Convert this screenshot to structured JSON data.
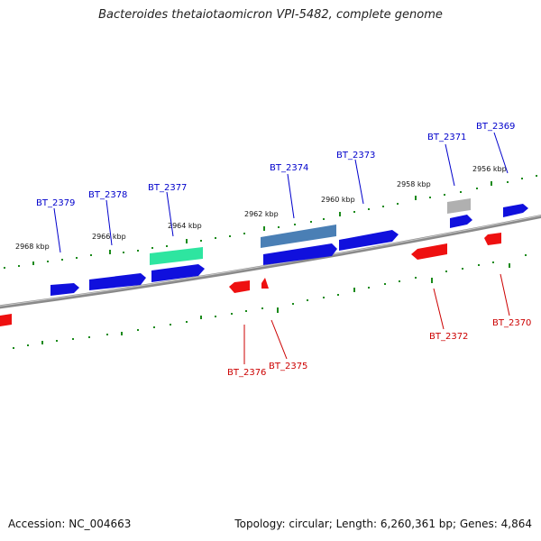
{
  "title": "Bacteroides thetaiotaomicron VPI-5482, complete genome",
  "accession": "Accession: NC_004663",
  "stats": "Topology: circular; Length: 6,260,361 bp; Genes: 4,864",
  "colors": {
    "forward_label": "#0000cc",
    "reverse_label": "#cc0000",
    "backbone": "#8a8a8a",
    "tick": "#1a8a1a"
  },
  "kbp_labels": [
    "2968 kbp",
    "2966 kbp",
    "2964 kbp",
    "2962 kbp",
    "2960 kbp",
    "2958 kbp",
    "2956 kbp"
  ],
  "forward_labels": [
    "BT_2379",
    "BT_2378",
    "BT_2377",
    "BT_2374",
    "BT_2373",
    "BT_2371",
    "BT_2369"
  ],
  "reverse_labels": [
    "BT_2376",
    "BT_2375",
    "BT_2372",
    "BT_2370"
  ]
}
